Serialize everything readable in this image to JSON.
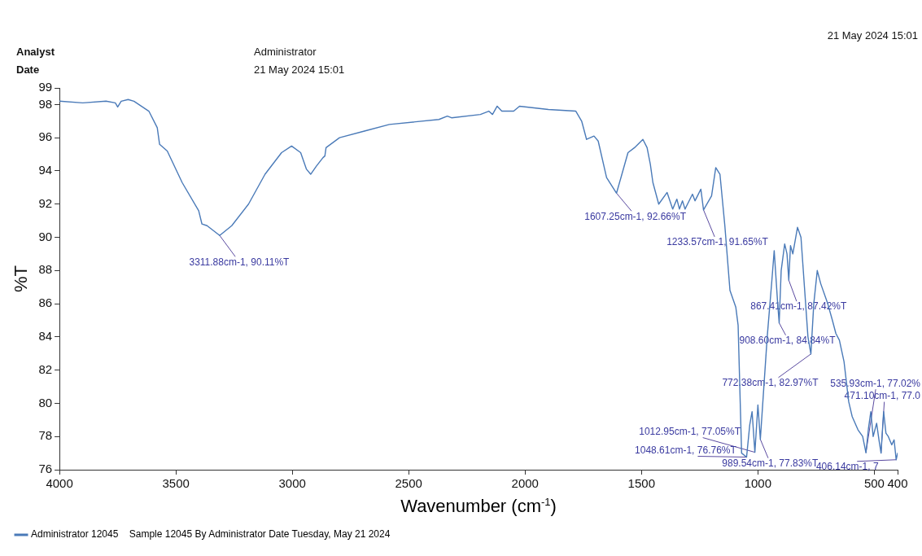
{
  "chart_data": {
    "type": "line",
    "xlabel": "Wavenumber (cm$^{-1}$)",
    "ylabel": "%T",
    "x": [
      4000,
      3900,
      3800,
      3760,
      3750,
      3735,
      3705,
      3680,
      3616,
      3580,
      3570,
      3537,
      3473,
      3402,
      3388,
      3366,
      3311.88,
      3260,
      3188,
      3117,
      3046,
      3003,
      2964,
      2939,
      2921,
      2896,
      2868,
      2860,
      2855,
      2797,
      2690,
      2583,
      2370,
      2334,
      2316,
      2192,
      2156,
      2140,
      2120,
      2100,
      2049,
      2024,
      1900,
      1782,
      1757,
      1736,
      1704,
      1686,
      1650,
      1607.25,
      1558,
      1530,
      1494,
      1476,
      1462,
      1451,
      1426,
      1390,
      1366,
      1348,
      1337,
      1324,
      1313,
      1281,
      1270,
      1245,
      1233.57,
      1199,
      1181,
      1163,
      1142,
      1120,
      1095,
      1085,
      1070,
      1048.61,
      1035,
      1025,
      1012.95,
      1000,
      989.54,
      960,
      940,
      930,
      915,
      908.6,
      900,
      885,
      875,
      867.41,
      860,
      850,
      830,
      815,
      800,
      785,
      772.38,
      760,
      745,
      730,
      700,
      680,
      665,
      650,
      630,
      610,
      595,
      570,
      550,
      535.93,
      525,
      515,
      505,
      490,
      480,
      471.1,
      460,
      450,
      440,
      425,
      415,
      406.14,
      400
    ],
    "series": [
      {
        "name": "Administrator 12045    Sample 12045 By Administrator Date Tuesday, May 21 2024",
        "color": "#4a7ab8",
        "values": [
          98.2,
          98.1,
          98.2,
          98.1,
          97.85,
          98.2,
          98.3,
          98.2,
          97.6,
          96.6,
          95.6,
          95.2,
          93.3,
          91.6,
          90.8,
          90.7,
          90.11,
          90.7,
          92.0,
          93.8,
          95.1,
          95.5,
          95.1,
          94.1,
          93.8,
          94.3,
          94.8,
          94.9,
          95.4,
          96.0,
          96.4,
          96.8,
          97.1,
          97.3,
          97.2,
          97.4,
          97.6,
          97.4,
          97.9,
          97.6,
          97.6,
          97.9,
          97.7,
          97.6,
          97.0,
          95.9,
          96.1,
          95.8,
          93.6,
          92.66,
          95.1,
          95.4,
          95.9,
          95.4,
          94.4,
          93.3,
          92.0,
          92.7,
          91.7,
          92.3,
          91.7,
          92.2,
          91.7,
          92.6,
          92.2,
          92.9,
          91.65,
          92.5,
          94.2,
          93.8,
          90.7,
          86.8,
          85.8,
          84.7,
          77.0,
          76.76,
          78.7,
          79.5,
          77.05,
          79.9,
          77.83,
          84.0,
          87.4,
          89.2,
          86.0,
          84.84,
          88.0,
          89.6,
          89.0,
          87.42,
          89.5,
          89.0,
          90.6,
          90.0,
          87.0,
          84.0,
          82.97,
          86.0,
          88.0,
          87.2,
          86.0,
          85.0,
          84.2,
          83.8,
          82.5,
          80.1,
          79.2,
          78.4,
          78.0,
          77.02,
          78.5,
          79.5,
          78.0,
          78.8,
          77.8,
          77.0,
          79.5,
          78.2,
          78.0,
          77.5,
          77.8,
          76.6,
          77.0
        ]
      }
    ],
    "xlim": [
      4000,
      400
    ],
    "xticks": [
      4000,
      3500,
      3000,
      2500,
      2000,
      1500,
      1000,
      500,
      400
    ],
    "ylim": [
      76,
      99
    ],
    "yticks": [
      76,
      78,
      80,
      82,
      84,
      86,
      88,
      90,
      92,
      94,
      96,
      98,
      99
    ],
    "grid": false,
    "legend": "bottom left",
    "marker": "none",
    "line_style": "solid",
    "annotations": [
      "Analyst",
      "Administrator",
      "Date",
      "21 May 2024 15:01",
      "21 May 2024 15:01",
      {
        "text": "3311.88cm-1, 90.11%T",
        "x": 3311.88,
        "y": 90.11
      },
      {
        "text": "1607.25cm-1, 92.66%T",
        "x": 1607.25,
        "y": 92.66
      },
      {
        "text": "1233.57cm-1, 91.65%T",
        "x": 1233.57,
        "y": 91.65
      },
      {
        "text": "867.41cm-1, 87.42%T",
        "x": 867.41,
        "y": 87.42
      },
      {
        "text": "908.60cm-1, 84.84%T",
        "x": 908.6,
        "y": 84.84
      },
      {
        "text": "772.38cm-1, 82.97%T",
        "x": 772.38,
        "y": 82.97
      },
      {
        "text": "1012.95cm-1, 77.05%T",
        "x": 1012.95,
        "y": 77.05
      },
      {
        "text": "1048.61cm-1, 76.76%T",
        "x": 1048.61,
        "y": 76.76
      },
      {
        "text": "989.54cm-1, 77.83%T",
        "x": 989.54,
        "y": 77.83
      },
      {
        "text": "535.93cm-1, 77.02%",
        "x": 535.93,
        "y": 77.02
      },
      {
        "text": "471.10cm-1, 77.0",
        "x": 471.1,
        "y": 77.0
      },
      {
        "text": "406.14cm-1, 7",
        "x": 406.14,
        "y": 76.6
      }
    ]
  }
}
